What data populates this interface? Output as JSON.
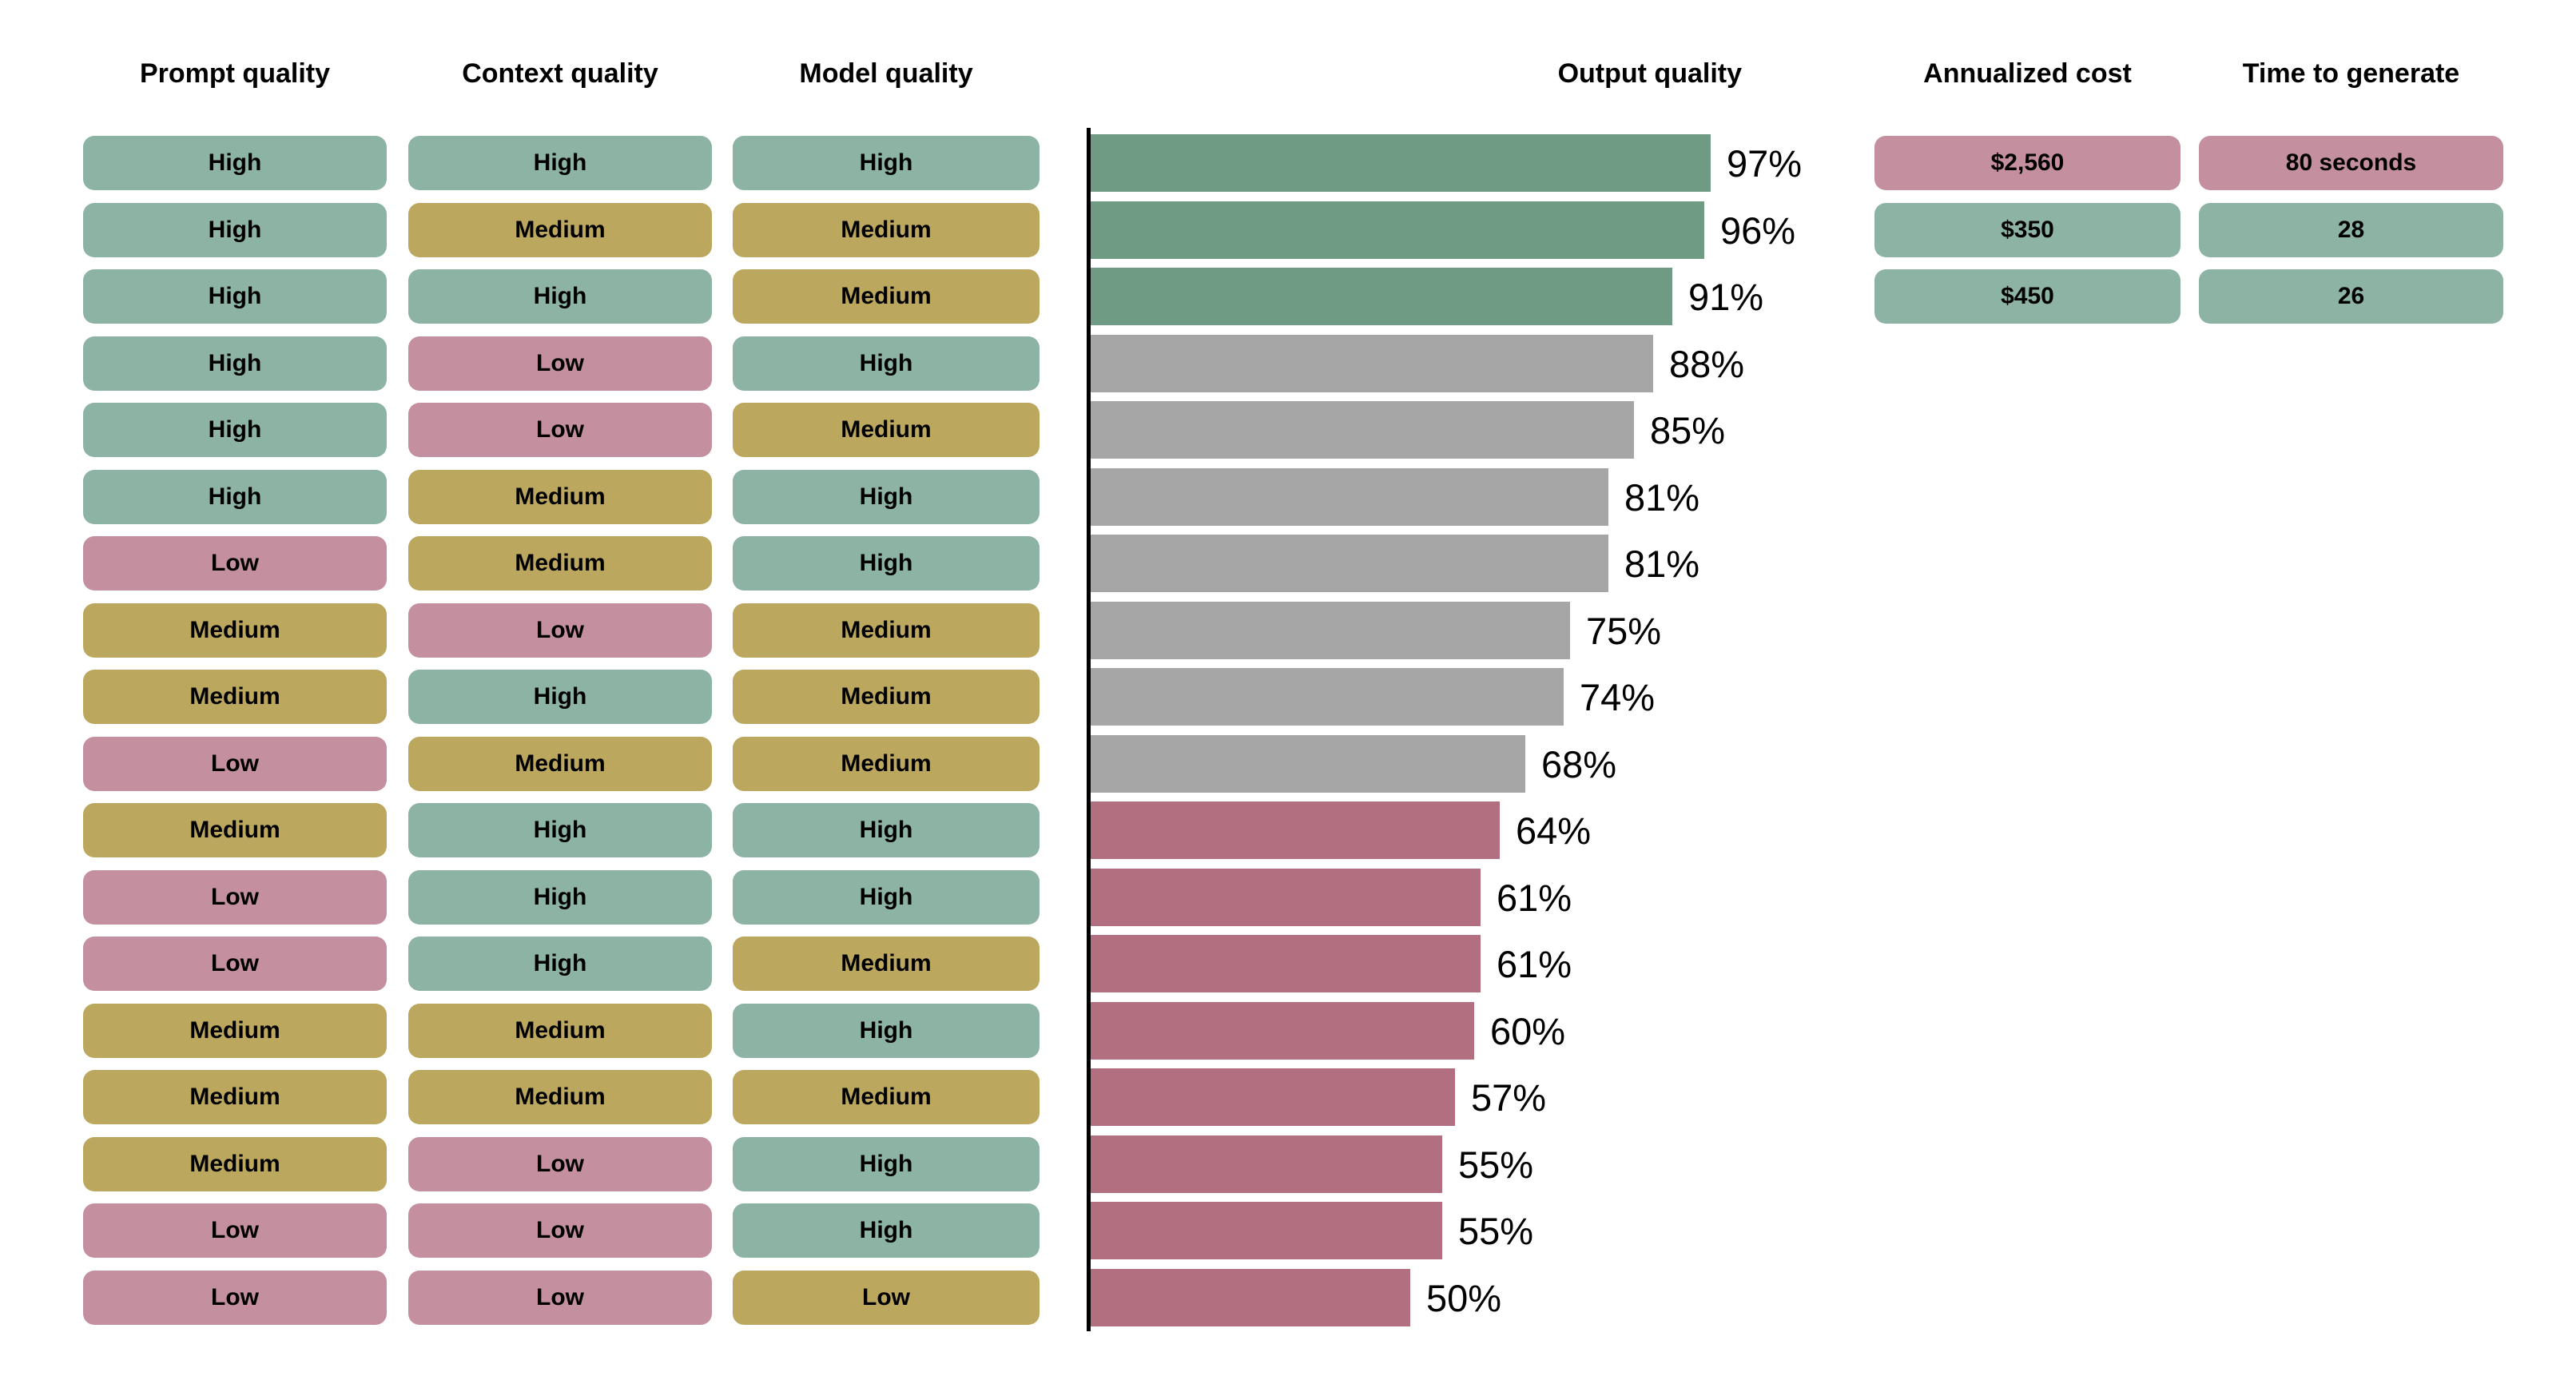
{
  "palette": {
    "chip_green": "#8db3a4",
    "chip_gold": "#bca75f",
    "chip_pink": "#c48f9e",
    "bar_green": "#6f9b85",
    "bar_gray": "#a6a6a6",
    "bar_pink": "#b26f80",
    "axis": "#000000",
    "text": "#000000",
    "background": "#ffffff"
  },
  "headers": {
    "prompt": "Prompt quality",
    "context": "Context quality",
    "model": "Model quality",
    "output": "Output quality",
    "cost": "Annualized cost",
    "time": "Time to generate"
  },
  "rows": [
    {
      "prompt": {
        "label": "High",
        "color": "green"
      },
      "context": {
        "label": "High",
        "color": "green"
      },
      "model": {
        "label": "High",
        "color": "green"
      },
      "output": {
        "value": 97,
        "label": "97%",
        "color": "green"
      },
      "cost": {
        "label": "$2,560",
        "color": "pink"
      },
      "time": {
        "label": "80 seconds",
        "color": "pink"
      }
    },
    {
      "prompt": {
        "label": "High",
        "color": "green"
      },
      "context": {
        "label": "Medium",
        "color": "gold"
      },
      "model": {
        "label": "Medium",
        "color": "gold"
      },
      "output": {
        "value": 96,
        "label": "96%",
        "color": "green"
      },
      "cost": {
        "label": "$350",
        "color": "green"
      },
      "time": {
        "label": "28",
        "color": "green"
      }
    },
    {
      "prompt": {
        "label": "High",
        "color": "green"
      },
      "context": {
        "label": "High",
        "color": "green"
      },
      "model": {
        "label": "Medium",
        "color": "gold"
      },
      "output": {
        "value": 91,
        "label": "91%",
        "color": "green"
      },
      "cost": {
        "label": "$450",
        "color": "green"
      },
      "time": {
        "label": "26",
        "color": "green"
      }
    },
    {
      "prompt": {
        "label": "High",
        "color": "green"
      },
      "context": {
        "label": "Low",
        "color": "pink"
      },
      "model": {
        "label": "High",
        "color": "green"
      },
      "output": {
        "value": 88,
        "label": "88%",
        "color": "gray"
      },
      "cost": null,
      "time": null
    },
    {
      "prompt": {
        "label": "High",
        "color": "green"
      },
      "context": {
        "label": "Low",
        "color": "pink"
      },
      "model": {
        "label": "Medium",
        "color": "gold"
      },
      "output": {
        "value": 85,
        "label": "85%",
        "color": "gray"
      },
      "cost": null,
      "time": null
    },
    {
      "prompt": {
        "label": "High",
        "color": "green"
      },
      "context": {
        "label": "Medium",
        "color": "gold"
      },
      "model": {
        "label": "High",
        "color": "green"
      },
      "output": {
        "value": 81,
        "label": "81%",
        "color": "gray"
      },
      "cost": null,
      "time": null
    },
    {
      "prompt": {
        "label": "Low",
        "color": "pink"
      },
      "context": {
        "label": "Medium",
        "color": "gold"
      },
      "model": {
        "label": "High",
        "color": "green"
      },
      "output": {
        "value": 81,
        "label": "81%",
        "color": "gray"
      },
      "cost": null,
      "time": null
    },
    {
      "prompt": {
        "label": "Medium",
        "color": "gold"
      },
      "context": {
        "label": "Low",
        "color": "pink"
      },
      "model": {
        "label": "Medium",
        "color": "gold"
      },
      "output": {
        "value": 75,
        "label": "75%",
        "color": "gray"
      },
      "cost": null,
      "time": null
    },
    {
      "prompt": {
        "label": "Medium",
        "color": "gold"
      },
      "context": {
        "label": "High",
        "color": "green"
      },
      "model": {
        "label": "Medium",
        "color": "gold"
      },
      "output": {
        "value": 74,
        "label": "74%",
        "color": "gray"
      },
      "cost": null,
      "time": null
    },
    {
      "prompt": {
        "label": "Low",
        "color": "pink"
      },
      "context": {
        "label": "Medium",
        "color": "gold"
      },
      "model": {
        "label": "Medium",
        "color": "gold"
      },
      "output": {
        "value": 68,
        "label": "68%",
        "color": "gray"
      },
      "cost": null,
      "time": null
    },
    {
      "prompt": {
        "label": "Medium",
        "color": "gold"
      },
      "context": {
        "label": "High",
        "color": "green"
      },
      "model": {
        "label": "High",
        "color": "green"
      },
      "output": {
        "value": 64,
        "label": "64%",
        "color": "pink"
      },
      "cost": null,
      "time": null
    },
    {
      "prompt": {
        "label": "Low",
        "color": "pink"
      },
      "context": {
        "label": "High",
        "color": "green"
      },
      "model": {
        "label": "High",
        "color": "green"
      },
      "output": {
        "value": 61,
        "label": "61%",
        "color": "pink"
      },
      "cost": null,
      "time": null
    },
    {
      "prompt": {
        "label": "Low",
        "color": "pink"
      },
      "context": {
        "label": "High",
        "color": "green"
      },
      "model": {
        "label": "Medium",
        "color": "gold"
      },
      "output": {
        "value": 61,
        "label": "61%",
        "color": "pink"
      },
      "cost": null,
      "time": null
    },
    {
      "prompt": {
        "label": "Medium",
        "color": "gold"
      },
      "context": {
        "label": "Medium",
        "color": "gold"
      },
      "model": {
        "label": "High",
        "color": "green"
      },
      "output": {
        "value": 60,
        "label": "60%",
        "color": "pink"
      },
      "cost": null,
      "time": null
    },
    {
      "prompt": {
        "label": "Medium",
        "color": "gold"
      },
      "context": {
        "label": "Medium",
        "color": "gold"
      },
      "model": {
        "label": "Medium",
        "color": "gold"
      },
      "output": {
        "value": 57,
        "label": "57%",
        "color": "pink"
      },
      "cost": null,
      "time": null
    },
    {
      "prompt": {
        "label": "Medium",
        "color": "gold"
      },
      "context": {
        "label": "Low",
        "color": "pink"
      },
      "model": {
        "label": "High",
        "color": "green"
      },
      "output": {
        "value": 55,
        "label": "55%",
        "color": "pink"
      },
      "cost": null,
      "time": null
    },
    {
      "prompt": {
        "label": "Low",
        "color": "pink"
      },
      "context": {
        "label": "Low",
        "color": "pink"
      },
      "model": {
        "label": "High",
        "color": "green"
      },
      "output": {
        "value": 55,
        "label": "55%",
        "color": "pink"
      },
      "cost": null,
      "time": null
    },
    {
      "prompt": {
        "label": "Low",
        "color": "pink"
      },
      "context": {
        "label": "Low",
        "color": "pink"
      },
      "model": {
        "label": "Low",
        "color": "gold"
      },
      "output": {
        "value": 50,
        "label": "50%",
        "color": "pink"
      },
      "cost": null,
      "time": null
    }
  ],
  "chart_data": {
    "type": "bar",
    "orientation": "horizontal",
    "title": "Output quality",
    "xlabel": "",
    "ylabel": "",
    "xlim": [
      0,
      100
    ],
    "grid": false,
    "legend": "none",
    "categories": [
      "High / High / High",
      "High / Medium / Medium",
      "High / High / Medium",
      "High / Low / High",
      "High / Low / Medium",
      "High / Medium / High",
      "Low / Medium / High",
      "Medium / Low / Medium",
      "Medium / High / Medium",
      "Low / Medium / Medium",
      "Medium / High / High",
      "Low / High / High",
      "Low / High / Medium",
      "Medium / Medium / High",
      "Medium / Medium / Medium",
      "Medium / Low / High",
      "Low / Low / High",
      "Low / Low / Low"
    ],
    "category_axes": [
      "Prompt quality",
      "Context quality",
      "Model quality"
    ],
    "values": [
      97,
      96,
      91,
      88,
      85,
      81,
      81,
      75,
      74,
      68,
      64,
      61,
      61,
      60,
      57,
      55,
      55,
      50
    ],
    "bar_color_groups": [
      "green",
      "green",
      "green",
      "gray",
      "gray",
      "gray",
      "gray",
      "gray",
      "gray",
      "gray",
      "pink",
      "pink",
      "pink",
      "pink",
      "pink",
      "pink",
      "pink",
      "pink"
    ],
    "data_labels": [
      "97%",
      "96%",
      "91%",
      "88%",
      "85%",
      "81%",
      "81%",
      "75%",
      "74%",
      "68%",
      "64%",
      "61%",
      "61%",
      "60%",
      "57%",
      "55%",
      "55%",
      "50%"
    ],
    "annotations": {
      "annualized_cost": [
        "$2,560",
        "$350",
        "$450"
      ],
      "time_to_generate": [
        "80 seconds",
        "28",
        "26"
      ]
    }
  }
}
